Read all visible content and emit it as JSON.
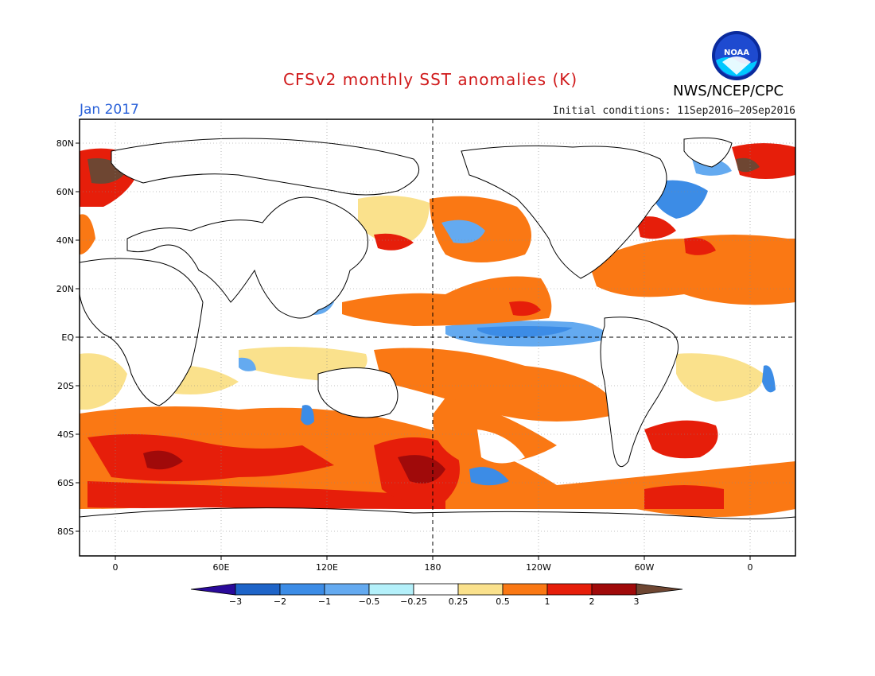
{
  "header": {
    "title": "CFSv2 monthly SST anomalies (K)",
    "period": "Jan 2017",
    "initial_conditions": "Initial conditions: 11Sep2016–20Sep2016",
    "agency": "NWS/NCEP/CPC",
    "logo_text": "NOAA"
  },
  "map": {
    "lat_labels": [
      "80N",
      "60N",
      "40N",
      "20N",
      "EQ",
      "20S",
      "40S",
      "60S",
      "80S"
    ],
    "lon_labels": [
      "0",
      "60E",
      "120E",
      "180",
      "120W",
      "60W",
      "0"
    ]
  },
  "legend": {
    "thresholds": [
      "−3",
      "−2",
      "−1",
      "−0.5",
      "−0.25",
      "0.25",
      "0.5",
      "1",
      "2",
      "3"
    ],
    "colors": [
      "#2a0a9a",
      "#1e64c8",
      "#3c8ce6",
      "#64aaf0",
      "#b4f0fa",
      "#ffffff",
      "#fae18c",
      "#fa7814",
      "#e61e0a",
      "#a00a0a",
      "#6e4632"
    ]
  }
}
